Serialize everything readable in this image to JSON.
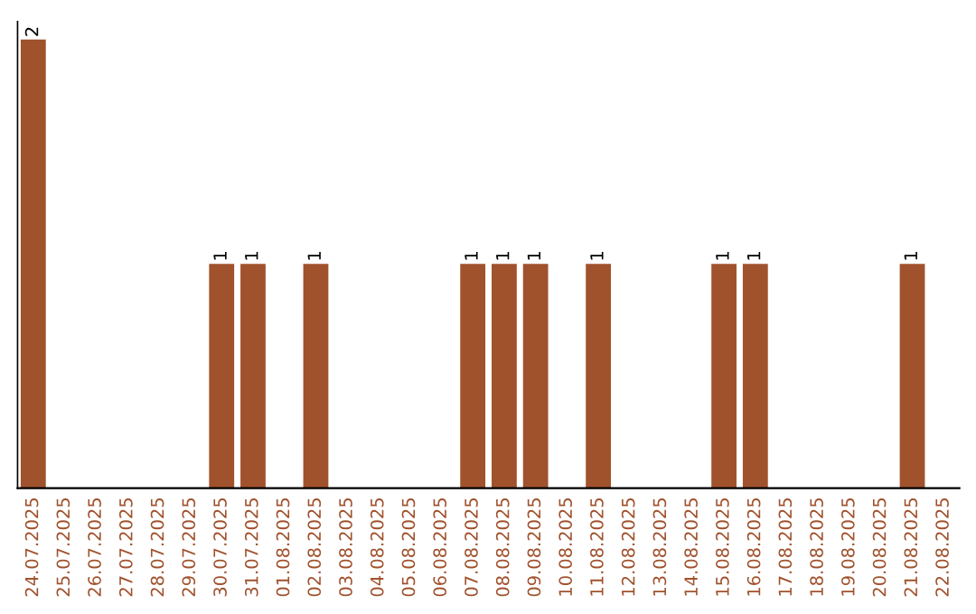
{
  "chart_data": {
    "type": "bar",
    "categories": [
      "24.07.2025",
      "25.07.2025",
      "26.07.2025",
      "27.07.2025",
      "28.07.2025",
      "29.07.2025",
      "30.07.2025",
      "31.07.2025",
      "01.08.2025",
      "02.08.2025",
      "03.08.2025",
      "04.08.2025",
      "05.08.2025",
      "06.08.2025",
      "07.08.2025",
      "08.08.2025",
      "09.08.2025",
      "10.08.2025",
      "11.08.2025",
      "12.08.2025",
      "13.08.2025",
      "14.08.2025",
      "15.08.2025",
      "16.08.2025",
      "17.08.2025",
      "18.08.2025",
      "19.08.2025",
      "20.08.2025",
      "21.08.2025",
      "22.08.2025"
    ],
    "values": [
      2,
      0,
      0,
      0,
      0,
      0,
      1,
      1,
      0,
      1,
      0,
      0,
      0,
      0,
      1,
      1,
      1,
      0,
      1,
      0,
      0,
      0,
      1,
      1,
      0,
      0,
      0,
      0,
      1,
      0
    ],
    "value_labels": [
      "2",
      null,
      null,
      null,
      null,
      null,
      "1",
      "1",
      null,
      "1",
      null,
      null,
      null,
      null,
      "1",
      "1",
      "1",
      null,
      "1",
      null,
      null,
      null,
      "1",
      "1",
      null,
      null,
      null,
      null,
      "1",
      null
    ],
    "color": "#a0522d",
    "grid": false,
    "legend": false
  }
}
